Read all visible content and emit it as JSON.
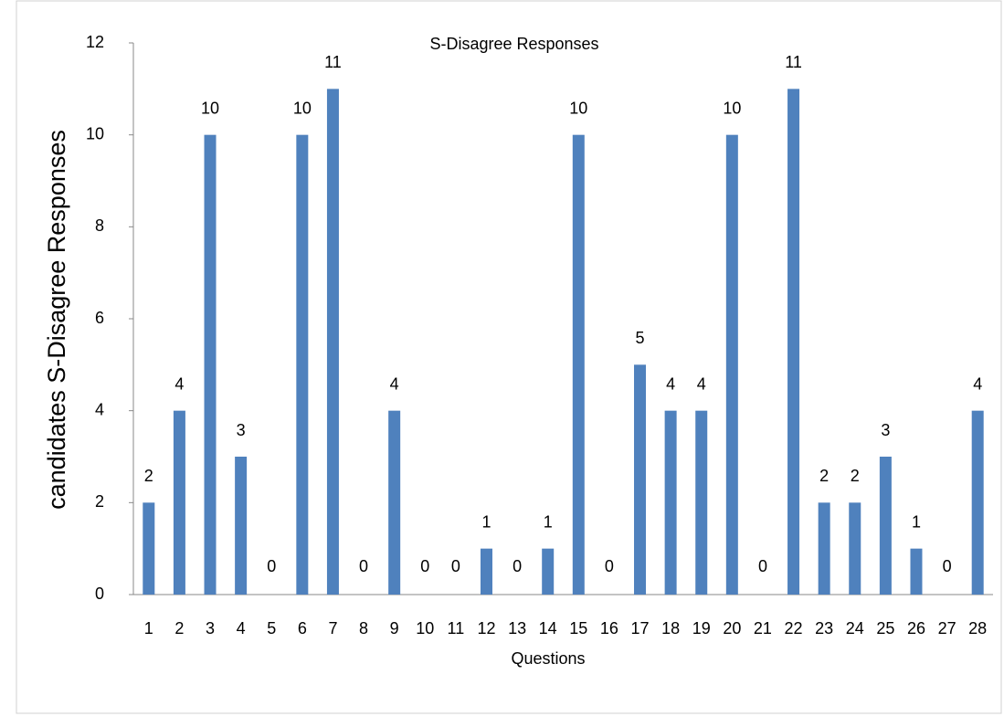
{
  "chart_data": {
    "type": "bar",
    "title": "S-Disagree  Responses",
    "x_label": "Questions",
    "y_label": "candidates  S-Disagree  Responses",
    "categories": [
      "1",
      "2",
      "3",
      "4",
      "5",
      "6",
      "7",
      "8",
      "9",
      "10",
      "11",
      "12",
      "13",
      "14",
      "15",
      "16",
      "17",
      "18",
      "19",
      "20",
      "21",
      "22",
      "23",
      "24",
      "25",
      "26",
      "27",
      "28"
    ],
    "values": [
      2,
      4,
      10,
      3,
      0,
      10,
      11,
      0,
      4,
      0,
      0,
      1,
      0,
      1,
      10,
      0,
      5,
      4,
      4,
      10,
      0,
      11,
      2,
      2,
      3,
      1,
      0,
      4
    ],
    "color": "#4f81bd",
    "ylim": [
      0,
      12
    ],
    "yticks": [
      0,
      2,
      4,
      6,
      8,
      10,
      12
    ],
    "grid": false
  }
}
